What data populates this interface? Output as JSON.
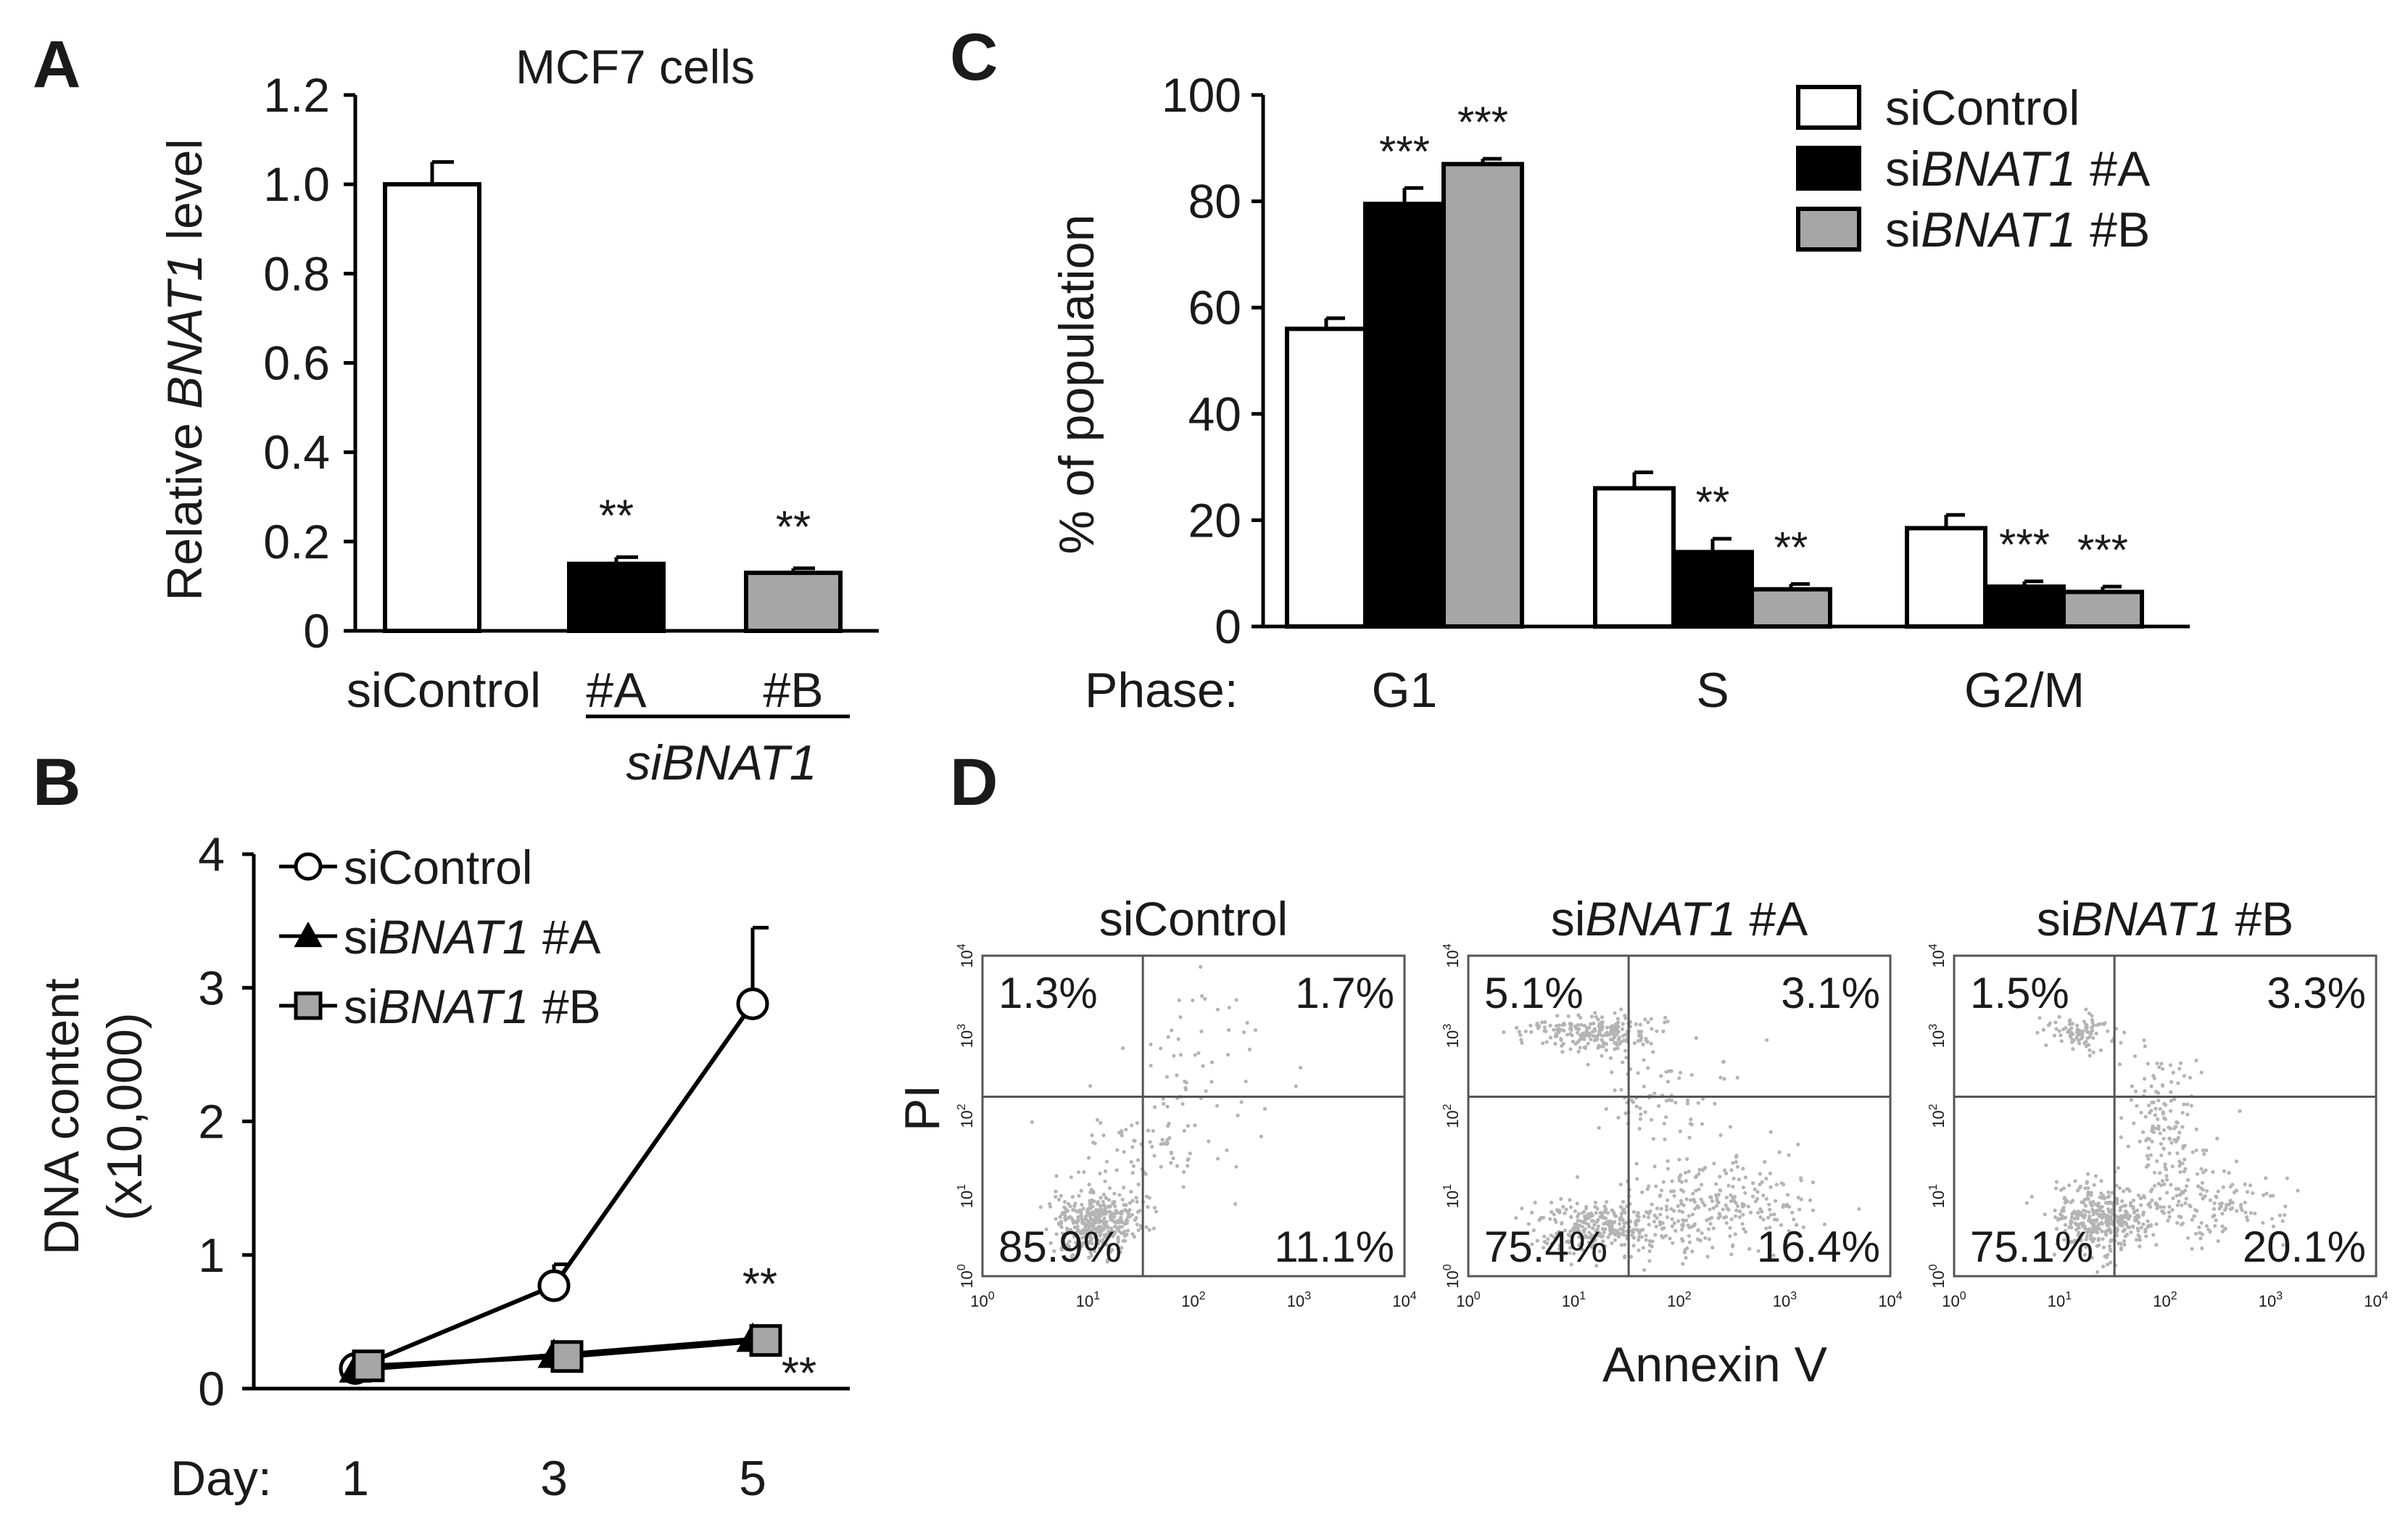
{
  "colors": {
    "white": "#ffffff",
    "black": "#000000",
    "gray": "#a6a6a6",
    "dot": "#b4b4b4"
  },
  "chart_data": [
    {
      "panel": "A",
      "type": "bar",
      "title": "MCF7 cells",
      "ylabel_prefix": "Relative ",
      "ylabel_gene": "BNAT1",
      "ylabel_suffix": " level",
      "ylim": [
        0,
        1.2
      ],
      "yticks": [
        "0",
        "0.2",
        "0.4",
        "0.6",
        "0.8",
        "1.0",
        "1.2"
      ],
      "categories": [
        "siControl",
        "#A",
        "#B"
      ],
      "group_label": "siBNAT1",
      "values": [
        1.0,
        0.15,
        0.13
      ],
      "errors": [
        0.05,
        0.015,
        0.01
      ],
      "significance": [
        "",
        "**",
        "**"
      ],
      "fills": [
        "white",
        "black",
        "gray"
      ]
    },
    {
      "panel": "C",
      "type": "bar",
      "ylabel": "% of population",
      "ylim": [
        0,
        100
      ],
      "yticks": [
        "0",
        "20",
        "40",
        "60",
        "80",
        "100"
      ],
      "xprefix": "Phase:",
      "categories": [
        "G1",
        "S",
        "G2/M"
      ],
      "series": [
        {
          "name": "siControl",
          "prefix": "si",
          "label": "Control",
          "suffix": "",
          "values": [
            56,
            26,
            18.5
          ],
          "errors": [
            2,
            3,
            2.5
          ],
          "significance": [
            "",
            "",
            ""
          ]
        },
        {
          "name": "siBNAT1 #A",
          "prefix": "si",
          "label": "BNAT1",
          "suffix": " #A",
          "values": [
            79.5,
            14,
            7.5
          ],
          "errors": [
            3,
            2.5,
            1
          ],
          "significance": [
            "***",
            "**",
            "***"
          ]
        },
        {
          "name": "siBNAT1 #B",
          "prefix": "si",
          "label": "BNAT1",
          "suffix": " #B",
          "values": [
            87,
            7,
            6.5
          ],
          "errors": [
            1,
            1,
            1
          ],
          "significance": [
            "***",
            "**",
            "***"
          ]
        }
      ],
      "legend_position": "top-right"
    },
    {
      "panel": "B",
      "type": "line",
      "ylabel_line1": "DNA content",
      "ylabel_line2": "(x10,000)",
      "ylim": [
        0,
        4
      ],
      "yticks": [
        "0",
        "1",
        "2",
        "3",
        "4"
      ],
      "xprefix": "Day:",
      "x": [
        1,
        3,
        5
      ],
      "xticks": [
        "1",
        "3",
        "5"
      ],
      "series": [
        {
          "name": "siControl",
          "prefix": "si",
          "label": "Control",
          "suffix": "",
          "marker": "circle",
          "values": [
            0.15,
            0.77,
            2.88
          ],
          "errors": [
            0.03,
            0.16,
            0.57
          ]
        },
        {
          "name": "siBNAT1 #A",
          "prefix": "si",
          "label": "BNAT1",
          "suffix": " #A",
          "marker": "triangle",
          "values": [
            0.14,
            0.25,
            0.37
          ],
          "errors": [
            0.02,
            0.03,
            0.04
          ]
        },
        {
          "name": "siBNAT1 #B",
          "prefix": "si",
          "label": "BNAT1",
          "suffix": " #B",
          "marker": "square",
          "values": [
            0.17,
            0.24,
            0.36
          ],
          "errors": [
            0.02,
            0.03,
            0.05
          ]
        }
      ],
      "significance": [
        "**",
        "**"
      ],
      "legend_position": "top-left"
    },
    {
      "panel": "D",
      "type": "scatter",
      "xlabel": "Annexin V",
      "ylabel": "PI",
      "axis_ticks": [
        "10",
        "10",
        "10",
        "10",
        "10"
      ],
      "axis_exponents": [
        "0",
        "1",
        "2",
        "3",
        "4"
      ],
      "plots": [
        {
          "prefix": "si",
          "label": "Control",
          "suffix": "",
          "quadrants": [
            "1.3%",
            "1.7%",
            "85.9%",
            "11.1%"
          ]
        },
        {
          "prefix": "si",
          "label": "BNAT1",
          "suffix": " #A",
          "quadrants": [
            "5.1%",
            "3.1%",
            "75.4%",
            "16.4%"
          ]
        },
        {
          "prefix": "si",
          "label": "BNAT1",
          "suffix": " #B",
          "quadrants": [
            "1.5%",
            "3.3%",
            "75.1%",
            "20.1%"
          ]
        }
      ]
    }
  ],
  "panel_letters": [
    "A",
    "B",
    "C",
    "D"
  ]
}
